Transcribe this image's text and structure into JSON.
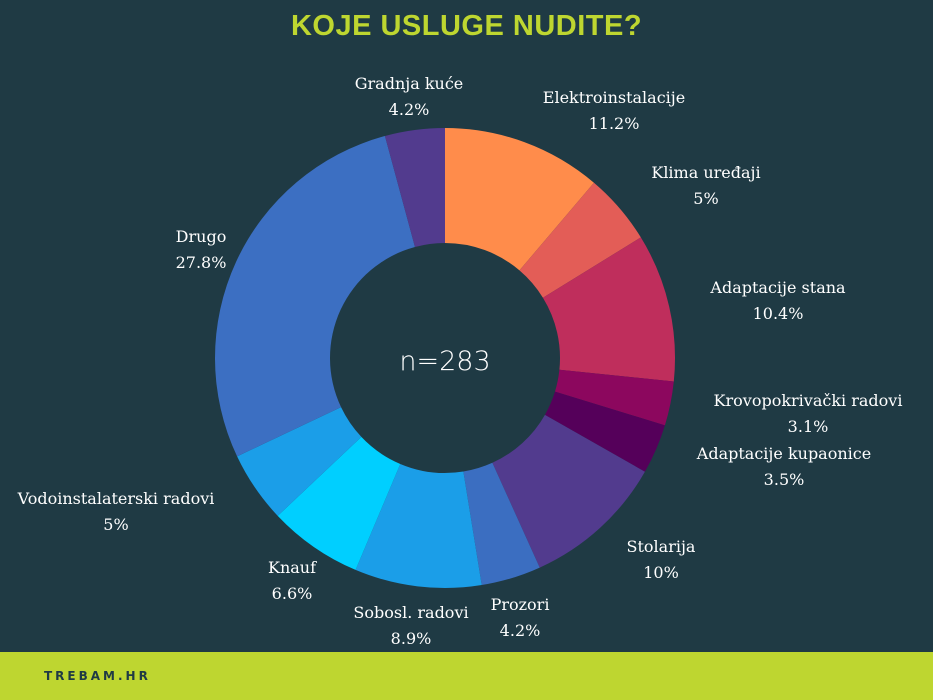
{
  "header": {
    "title": "KOJE USLUGE NUDITE?"
  },
  "footer": {
    "brand": "TREBAM.HR"
  },
  "chart_data": {
    "type": "pie",
    "title": "KOJE USLUGE NUDITE?",
    "center_label": "n=283",
    "slices": [
      {
        "label": "Elektroinstalacije",
        "value": 11.2,
        "value_label": "11.2%",
        "color": "#ff8c4b"
      },
      {
        "label": "Klima uređaji",
        "value": 5,
        "value_label": "5%",
        "color": "#e35d57"
      },
      {
        "label": "Adaptacije stana",
        "value": 10.4,
        "value_label": "10.4%",
        "color": "#bf2e5c"
      },
      {
        "label": "Krovopokrivački radovi",
        "value": 3.1,
        "value_label": "3.1%",
        "color": "#8c075e"
      },
      {
        "label": "Adaptacije kupaonice",
        "value": 3.5,
        "value_label": "3.5%",
        "color": "#55005a"
      },
      {
        "label": "Stolarija",
        "value": 10,
        "value_label": "10%",
        "color": "#523b8e"
      },
      {
        "label": "Prozori",
        "value": 4.2,
        "value_label": "4.2%",
        "color": "#3b6ec1"
      },
      {
        "label": "Sobosl. radovi",
        "value": 8.9,
        "value_label": "8.9%",
        "color": "#1b9ee8"
      },
      {
        "label": "Knauf",
        "value": 6.6,
        "value_label": "6.6%",
        "color": "#00cfff"
      },
      {
        "label": "Vodoinstalaterski radovi",
        "value": 5,
        "value_label": "5%",
        "color": "#1b9ee8"
      },
      {
        "label": "Drugo",
        "value": 27.8,
        "value_label": "27.8%",
        "color": "#3c6fc2"
      },
      {
        "label": "Gradnja kuće",
        "value": 4.2,
        "value_label": "4.2%",
        "color": "#523b8e"
      }
    ]
  }
}
